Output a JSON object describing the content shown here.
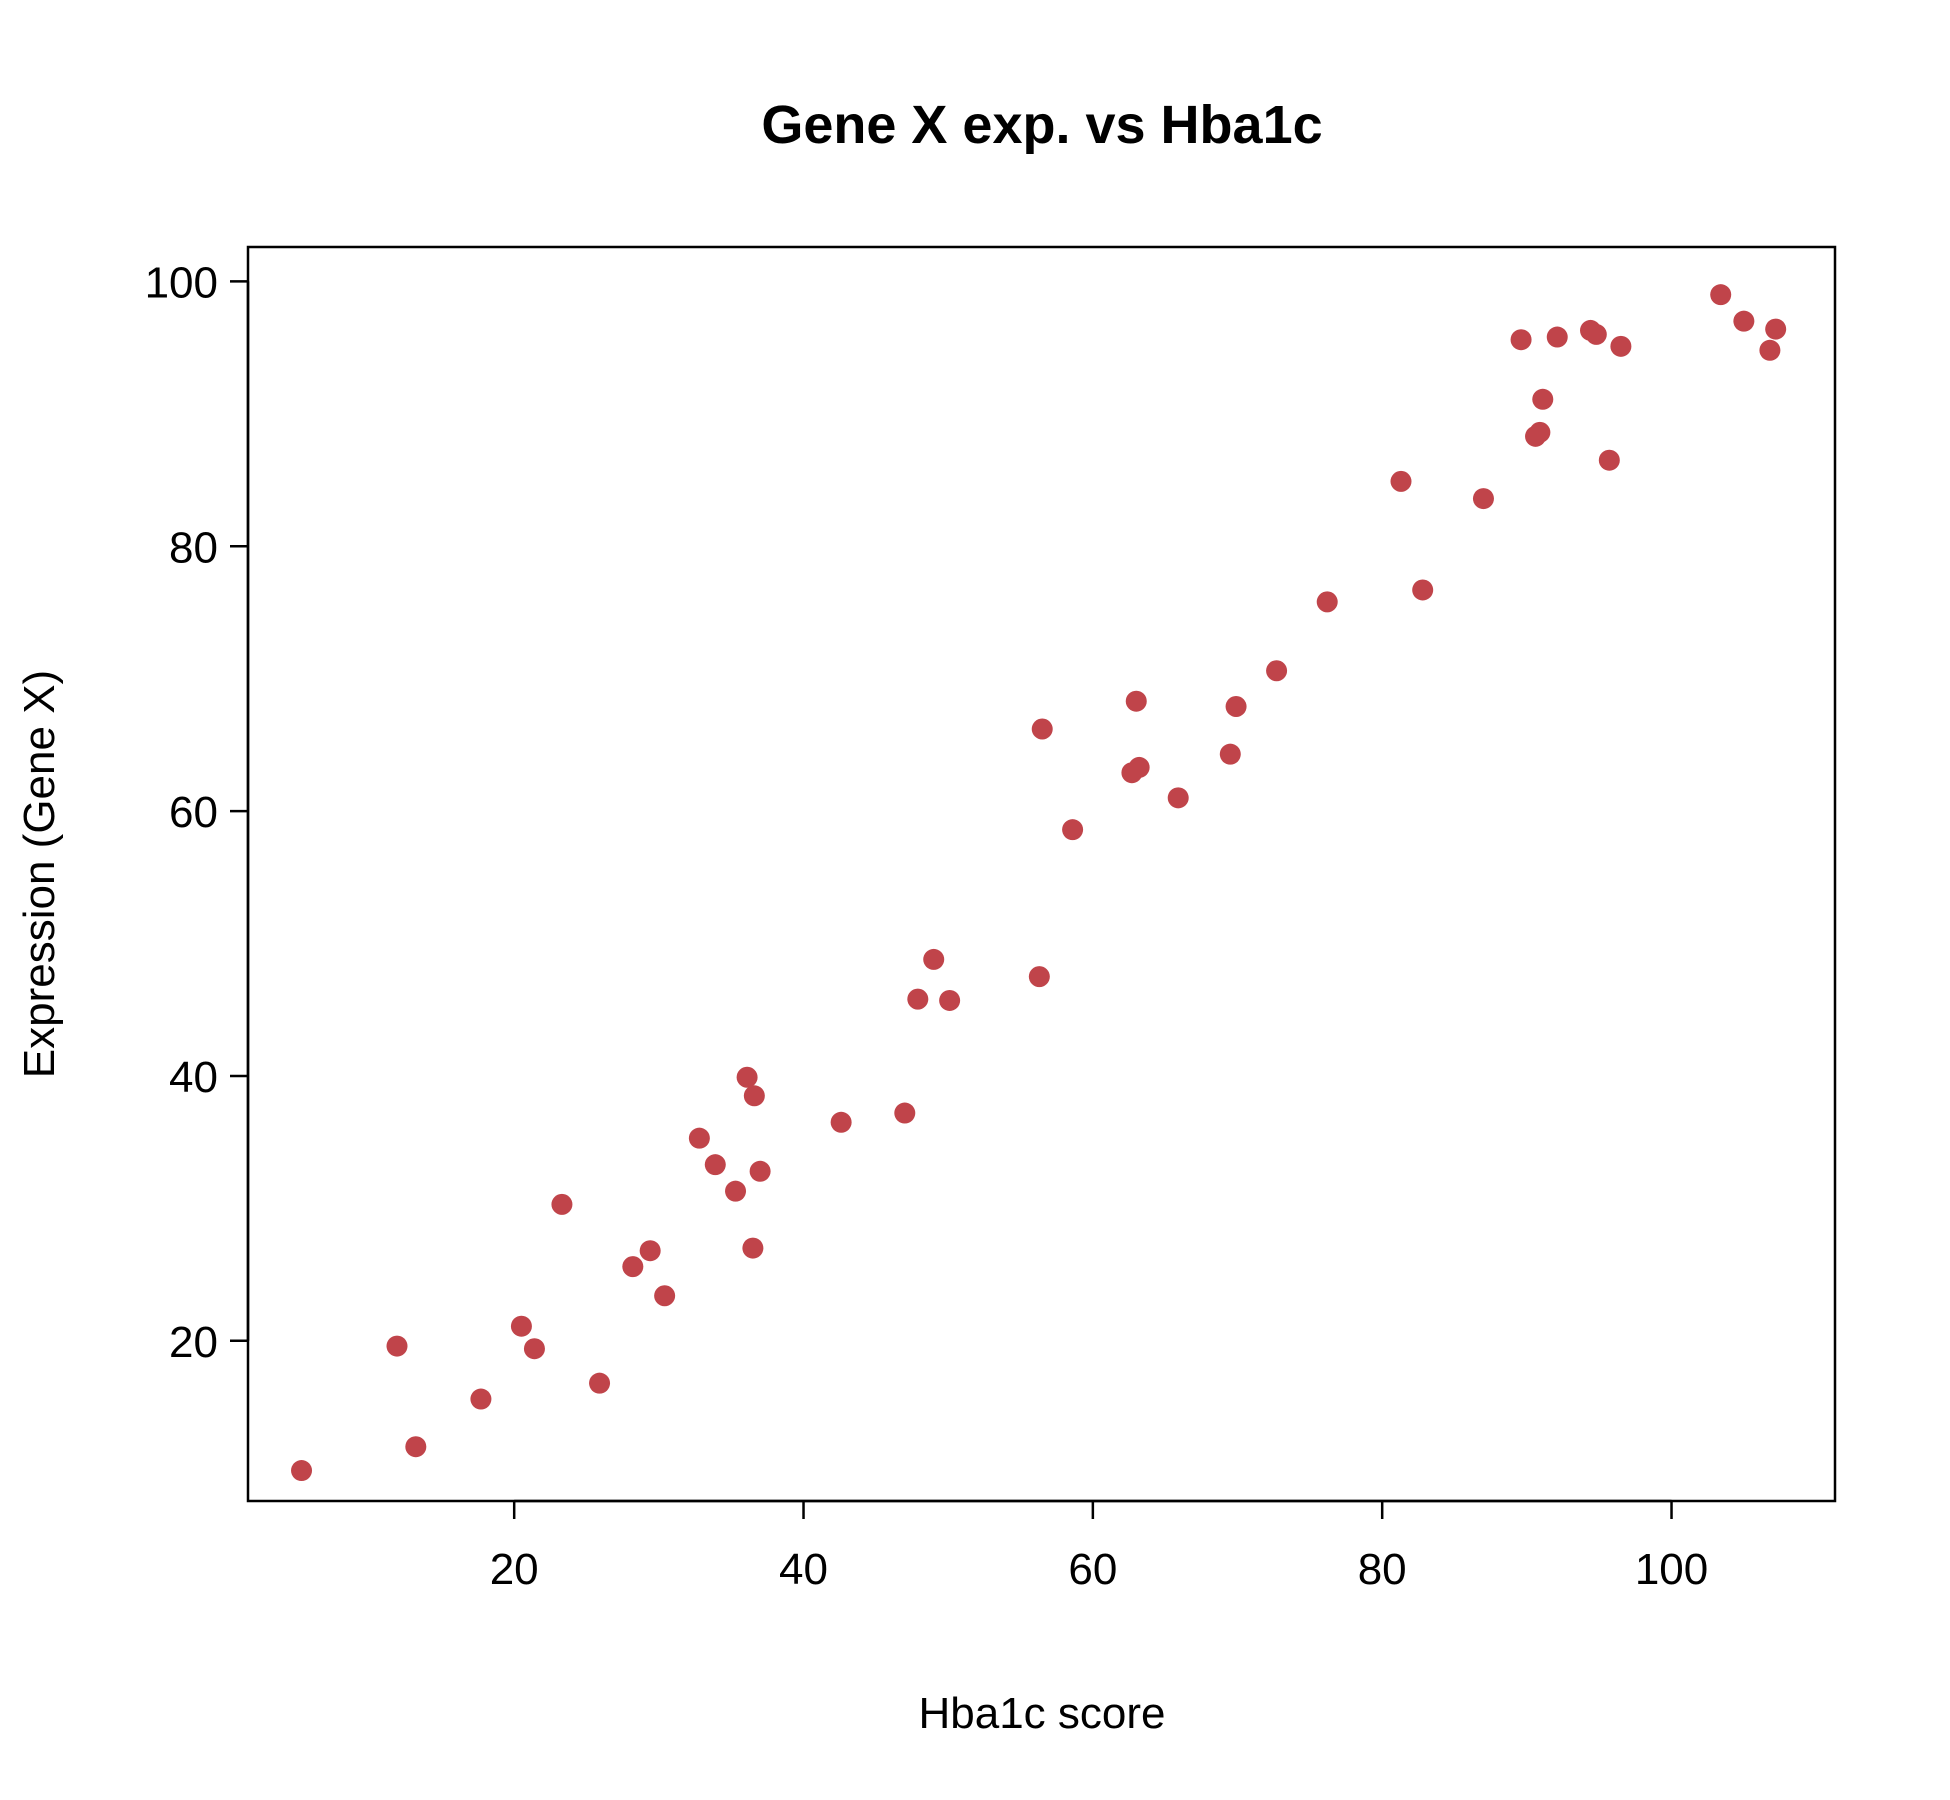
{
  "chart_data": {
    "type": "scatter",
    "title": "Gene X exp. vs Hba1c",
    "xlabel": "Hba1c score",
    "ylabel": "Expression (Gene X)",
    "xlim": [
      1.6,
      111.3
    ],
    "ylim": [
      7.9,
      102.6
    ],
    "xticks": [
      20,
      40,
      60,
      80,
      100
    ],
    "yticks": [
      20,
      40,
      60,
      80,
      100
    ],
    "xtick_labels": [
      "20",
      "40",
      "60",
      "80",
      "100"
    ],
    "ytick_labels": [
      "20",
      "40",
      "60",
      "80",
      "100"
    ],
    "grid": false,
    "marker_color": "#C0444A",
    "x": [
      5.3,
      11.9,
      13.2,
      17.7,
      20.5,
      21.4,
      23.3,
      25.9,
      28.2,
      29.4,
      30.4,
      32.8,
      33.9,
      35.3,
      36.1,
      36.5,
      36.6,
      37.0,
      42.6,
      47.0,
      47.9,
      49.0,
      50.1,
      56.3,
      56.5,
      58.6,
      62.7,
      63.0,
      63.2,
      65.9,
      69.5,
      69.9,
      72.7,
      76.2,
      81.3,
      82.8,
      87.0,
      89.6,
      90.6,
      90.9,
      91.1,
      92.1,
      94.4,
      94.8,
      95.7,
      96.5,
      103.4,
      105.0,
      106.8,
      107.2
    ],
    "y": [
      10.2,
      19.6,
      12.0,
      15.6,
      21.1,
      19.4,
      30.3,
      16.8,
      25.6,
      26.8,
      23.4,
      35.3,
      33.3,
      31.3,
      39.9,
      27.0,
      38.5,
      32.8,
      36.5,
      37.2,
      45.8,
      48.8,
      45.7,
      47.5,
      66.2,
      58.6,
      62.9,
      68.3,
      63.3,
      61.0,
      64.3,
      67.9,
      70.6,
      75.8,
      84.9,
      76.7,
      83.6,
      95.6,
      88.3,
      88.6,
      91.1,
      95.8,
      96.3,
      96.0,
      86.5,
      95.1,
      99.0,
      97.0,
      94.8,
      96.4
    ]
  }
}
